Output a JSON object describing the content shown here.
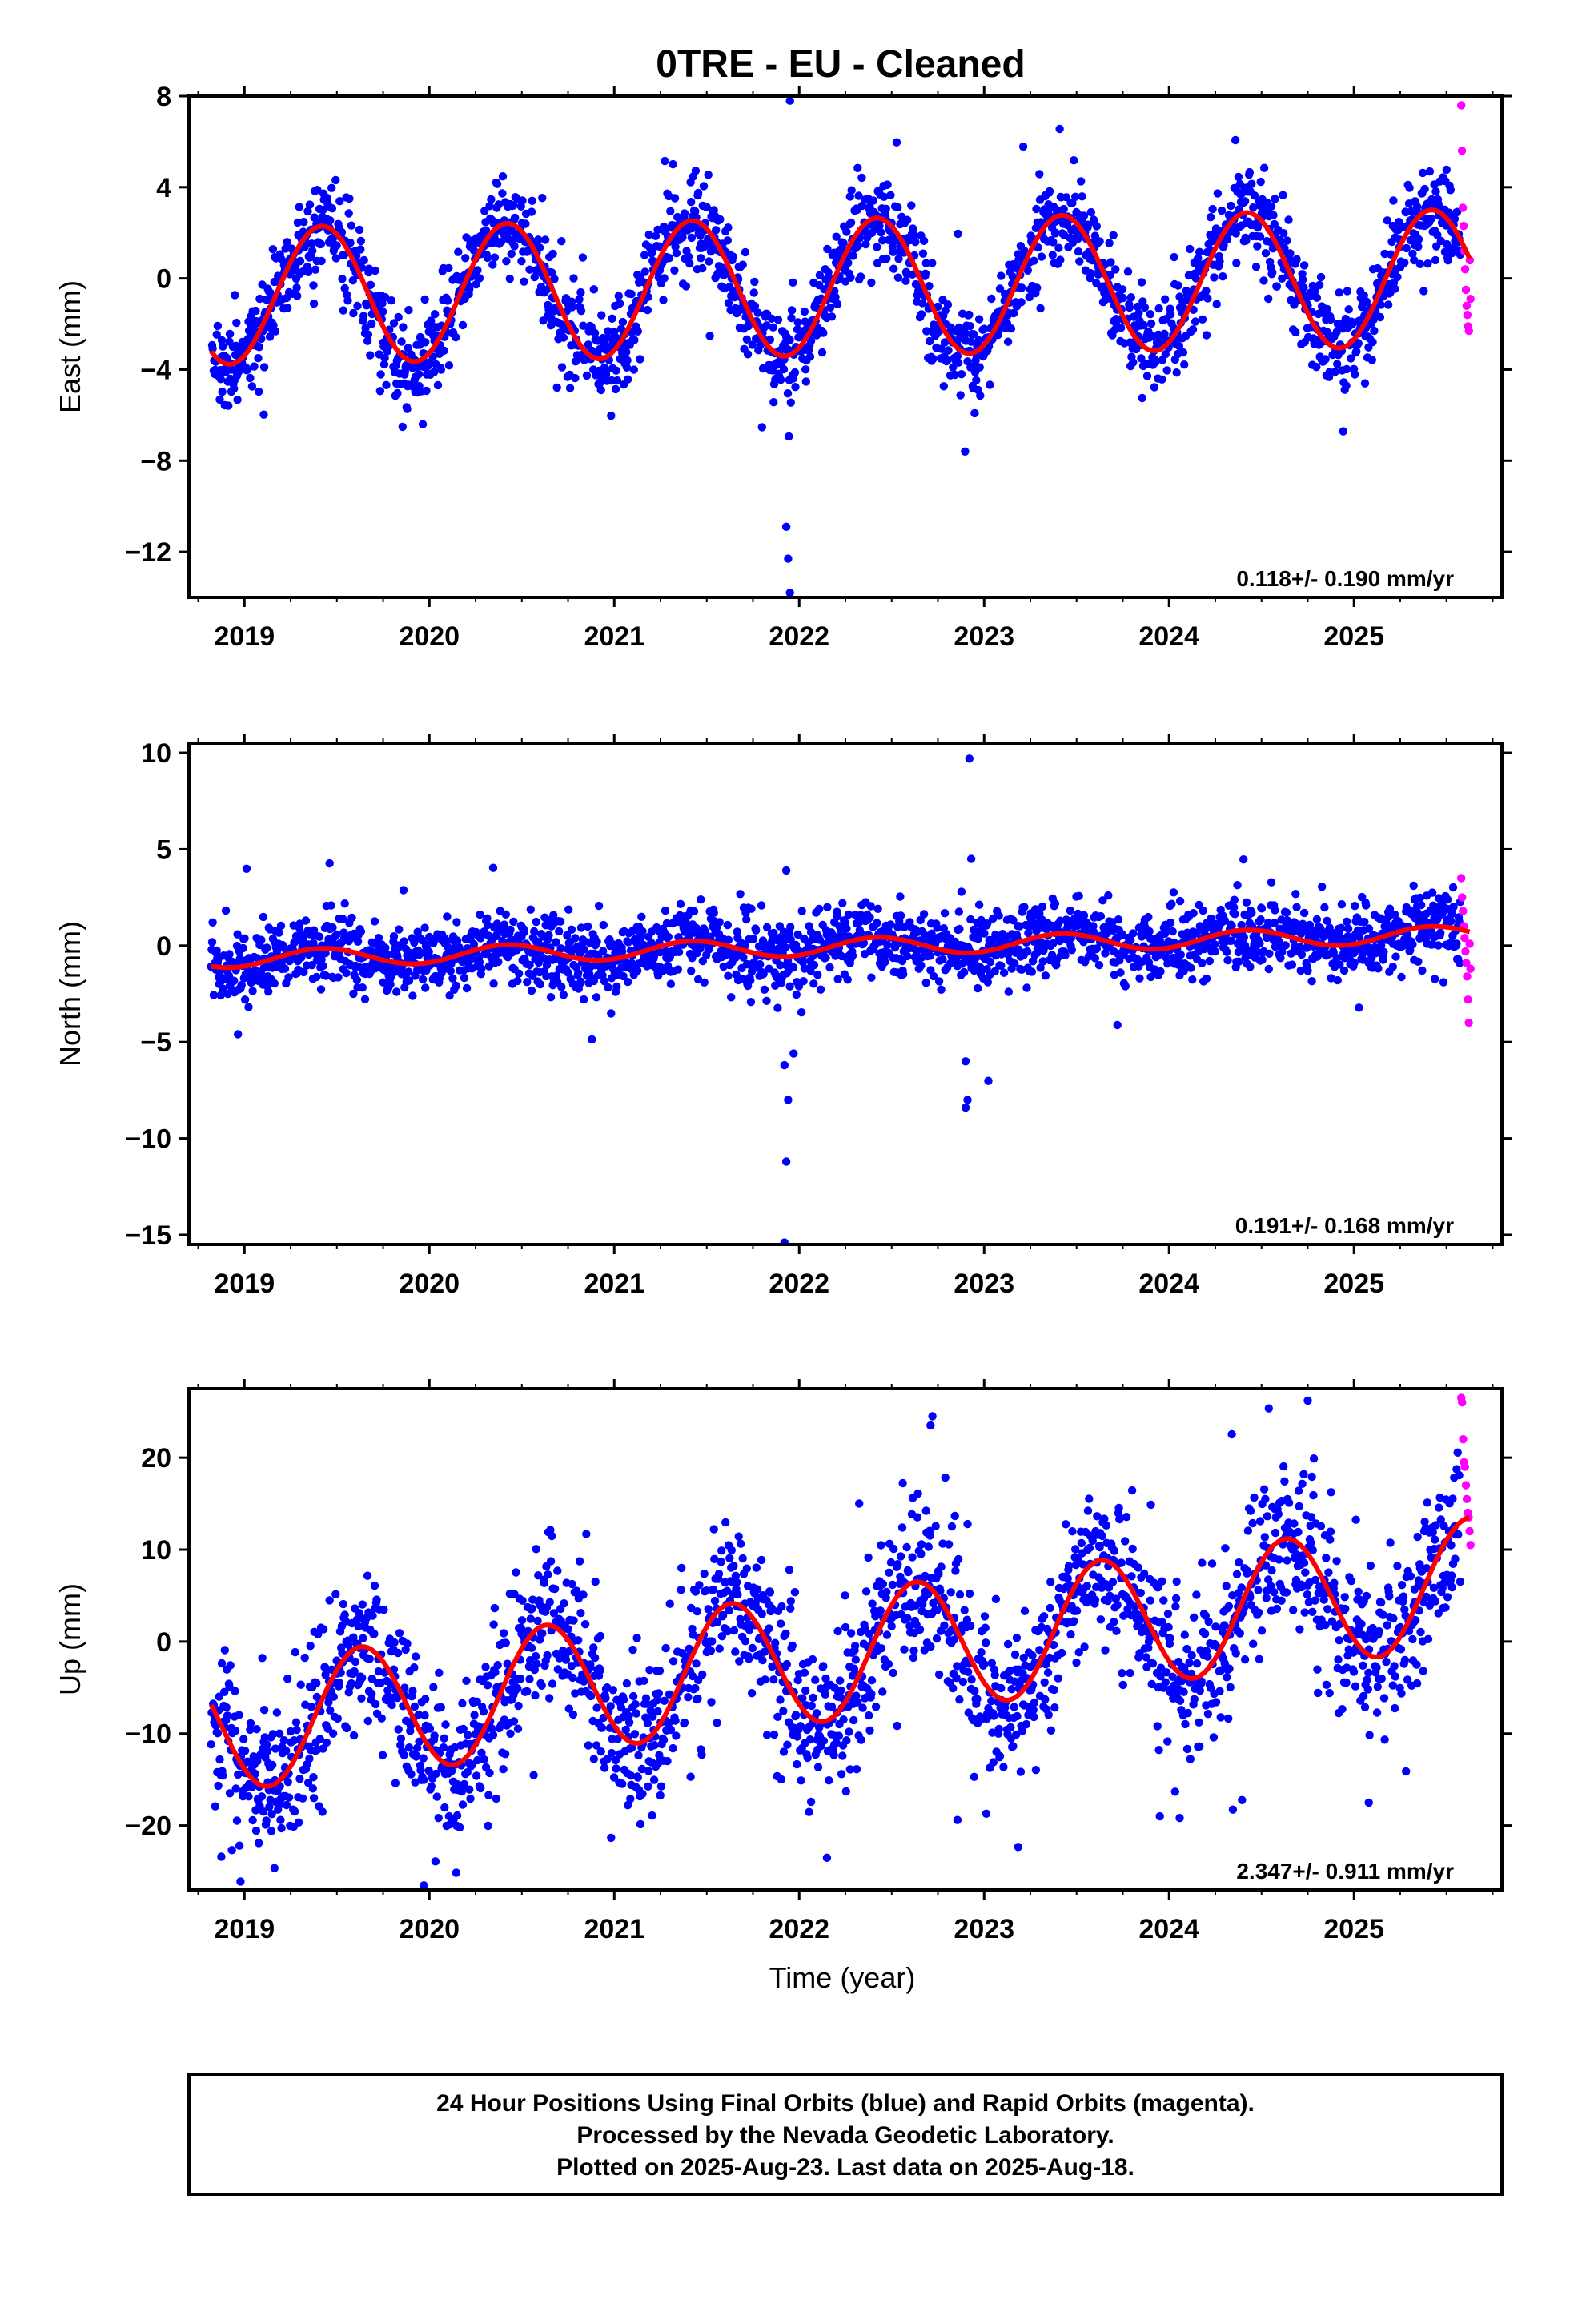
{
  "title": "0TRE  - EU - Cleaned",
  "xlabel": "Time (year)",
  "footer": {
    "line1": "24 Hour Positions Using Final Orbits (blue) and Rapid Orbits (magenta).",
    "line2": "Processed by the Nevada Geodetic Laboratory.",
    "line3": "Plotted on 2025-Aug-23. Last data on 2025-Aug-18."
  },
  "colors": {
    "final_orbits": "#0000ff",
    "rapid_orbits": "#ff00ff",
    "model_fit": "#ff0000"
  },
  "chart_data": [
    {
      "type": "scatter",
      "component": "east",
      "ylabel": "East (mm)",
      "xlim": [
        2018.7,
        2025.8
      ],
      "ylim": [
        -14,
        8
      ],
      "yticks": [
        8,
        4,
        0,
        -4,
        -8,
        -12
      ],
      "xticks": [
        2019,
        2020,
        2021,
        2022,
        2023,
        2024,
        2025
      ],
      "rate_label": "0.118+/- 0.190 mm/yr",
      "model": {
        "intercept": -0.4,
        "rate": 0.118,
        "amplitude": 3.0,
        "peak_phase": 0.42,
        "ref_year": 2022.0
      },
      "scatter_sd": 1.0,
      "rapid": {
        "x_range": [
          2025.58,
          2025.63
        ],
        "y_values": [
          7.6,
          5.6,
          3.1,
          2.3,
          1.2,
          0.4,
          -0.5,
          -1.2,
          -1.6,
          -2.1,
          -2.3,
          0.8,
          -0.9
        ]
      },
      "outliers": [
        [
          2021.95,
          7.8
        ],
        [
          2021.93,
          -10.9
        ],
        [
          2021.94,
          -12.3
        ],
        [
          2021.95,
          -13.8
        ]
      ]
    },
    {
      "type": "scatter",
      "component": "north",
      "ylabel": "North (mm)",
      "xlim": [
        2018.7,
        2025.8
      ],
      "ylim": [
        -15.5,
        10.5
      ],
      "yticks": [
        10,
        5,
        0,
        -5,
        -10,
        -15
      ],
      "xticks": [
        2019,
        2020,
        2021,
        2022,
        2023,
        2024,
        2025
      ],
      "rate_label": "0.191+/- 0.168 mm/yr",
      "model": {
        "intercept": -0.1,
        "rate": 0.191,
        "amplitude": 0.45,
        "peak_phase": 0.42,
        "ref_year": 2022.0
      },
      "scatter_sd": 0.85,
      "rapid": {
        "x_range": [
          2025.58,
          2025.63
        ],
        "y_values": [
          3.5,
          2.5,
          1.8,
          1.0,
          0.4,
          -0.3,
          -0.9,
          -1.6,
          -2.8,
          -4.0,
          0.1,
          -1.2
        ]
      },
      "outliers": [
        [
          2021.93,
          3.9
        ],
        [
          2021.92,
          -6.2
        ],
        [
          2021.97,
          -5.6
        ],
        [
          2021.94,
          -8.0
        ],
        [
          2021.93,
          -11.2
        ],
        [
          2021.92,
          -15.4
        ],
        [
          2022.92,
          9.7
        ],
        [
          2022.93,
          4.5
        ],
        [
          2022.9,
          -6.0
        ],
        [
          2022.91,
          -8.0
        ],
        [
          2022.9,
          -8.4
        ]
      ]
    },
    {
      "type": "scatter",
      "component": "up",
      "ylabel": "Up (mm)",
      "xlim": [
        2018.7,
        2025.8
      ],
      "ylim": [
        -27,
        27.5
      ],
      "yticks": [
        20,
        10,
        0,
        -10,
        -20
      ],
      "xticks": [
        2019,
        2020,
        2021,
        2022,
        2023,
        2024,
        2025
      ],
      "rate_label": "2.347+/- 0.911 mm/yr",
      "model": {
        "intercept": -2.0,
        "rate": 2.347,
        "amplitude": 7.0,
        "peak_phase": 0.63,
        "ref_year": 2022.0
      },
      "scatter_sd": 4.2,
      "rapid": {
        "x_range": [
          2025.58,
          2025.63
        ],
        "y_values": [
          26.5,
          26.0,
          22.0,
          19.5,
          19.0,
          17.0,
          15.5,
          14.0,
          13.5,
          12.0,
          10.5
        ]
      },
      "outliers": [
        [
          2022.72,
          24.5
        ],
        [
          2022.71,
          23.5
        ],
        [
          2024.75,
          26.2
        ],
        [
          2019.97,
          -26.5
        ],
        [
          2023.95,
          -19.0
        ],
        [
          2022.15,
          -23.5
        ],
        [
          2025.08,
          -17.5
        ]
      ]
    }
  ]
}
